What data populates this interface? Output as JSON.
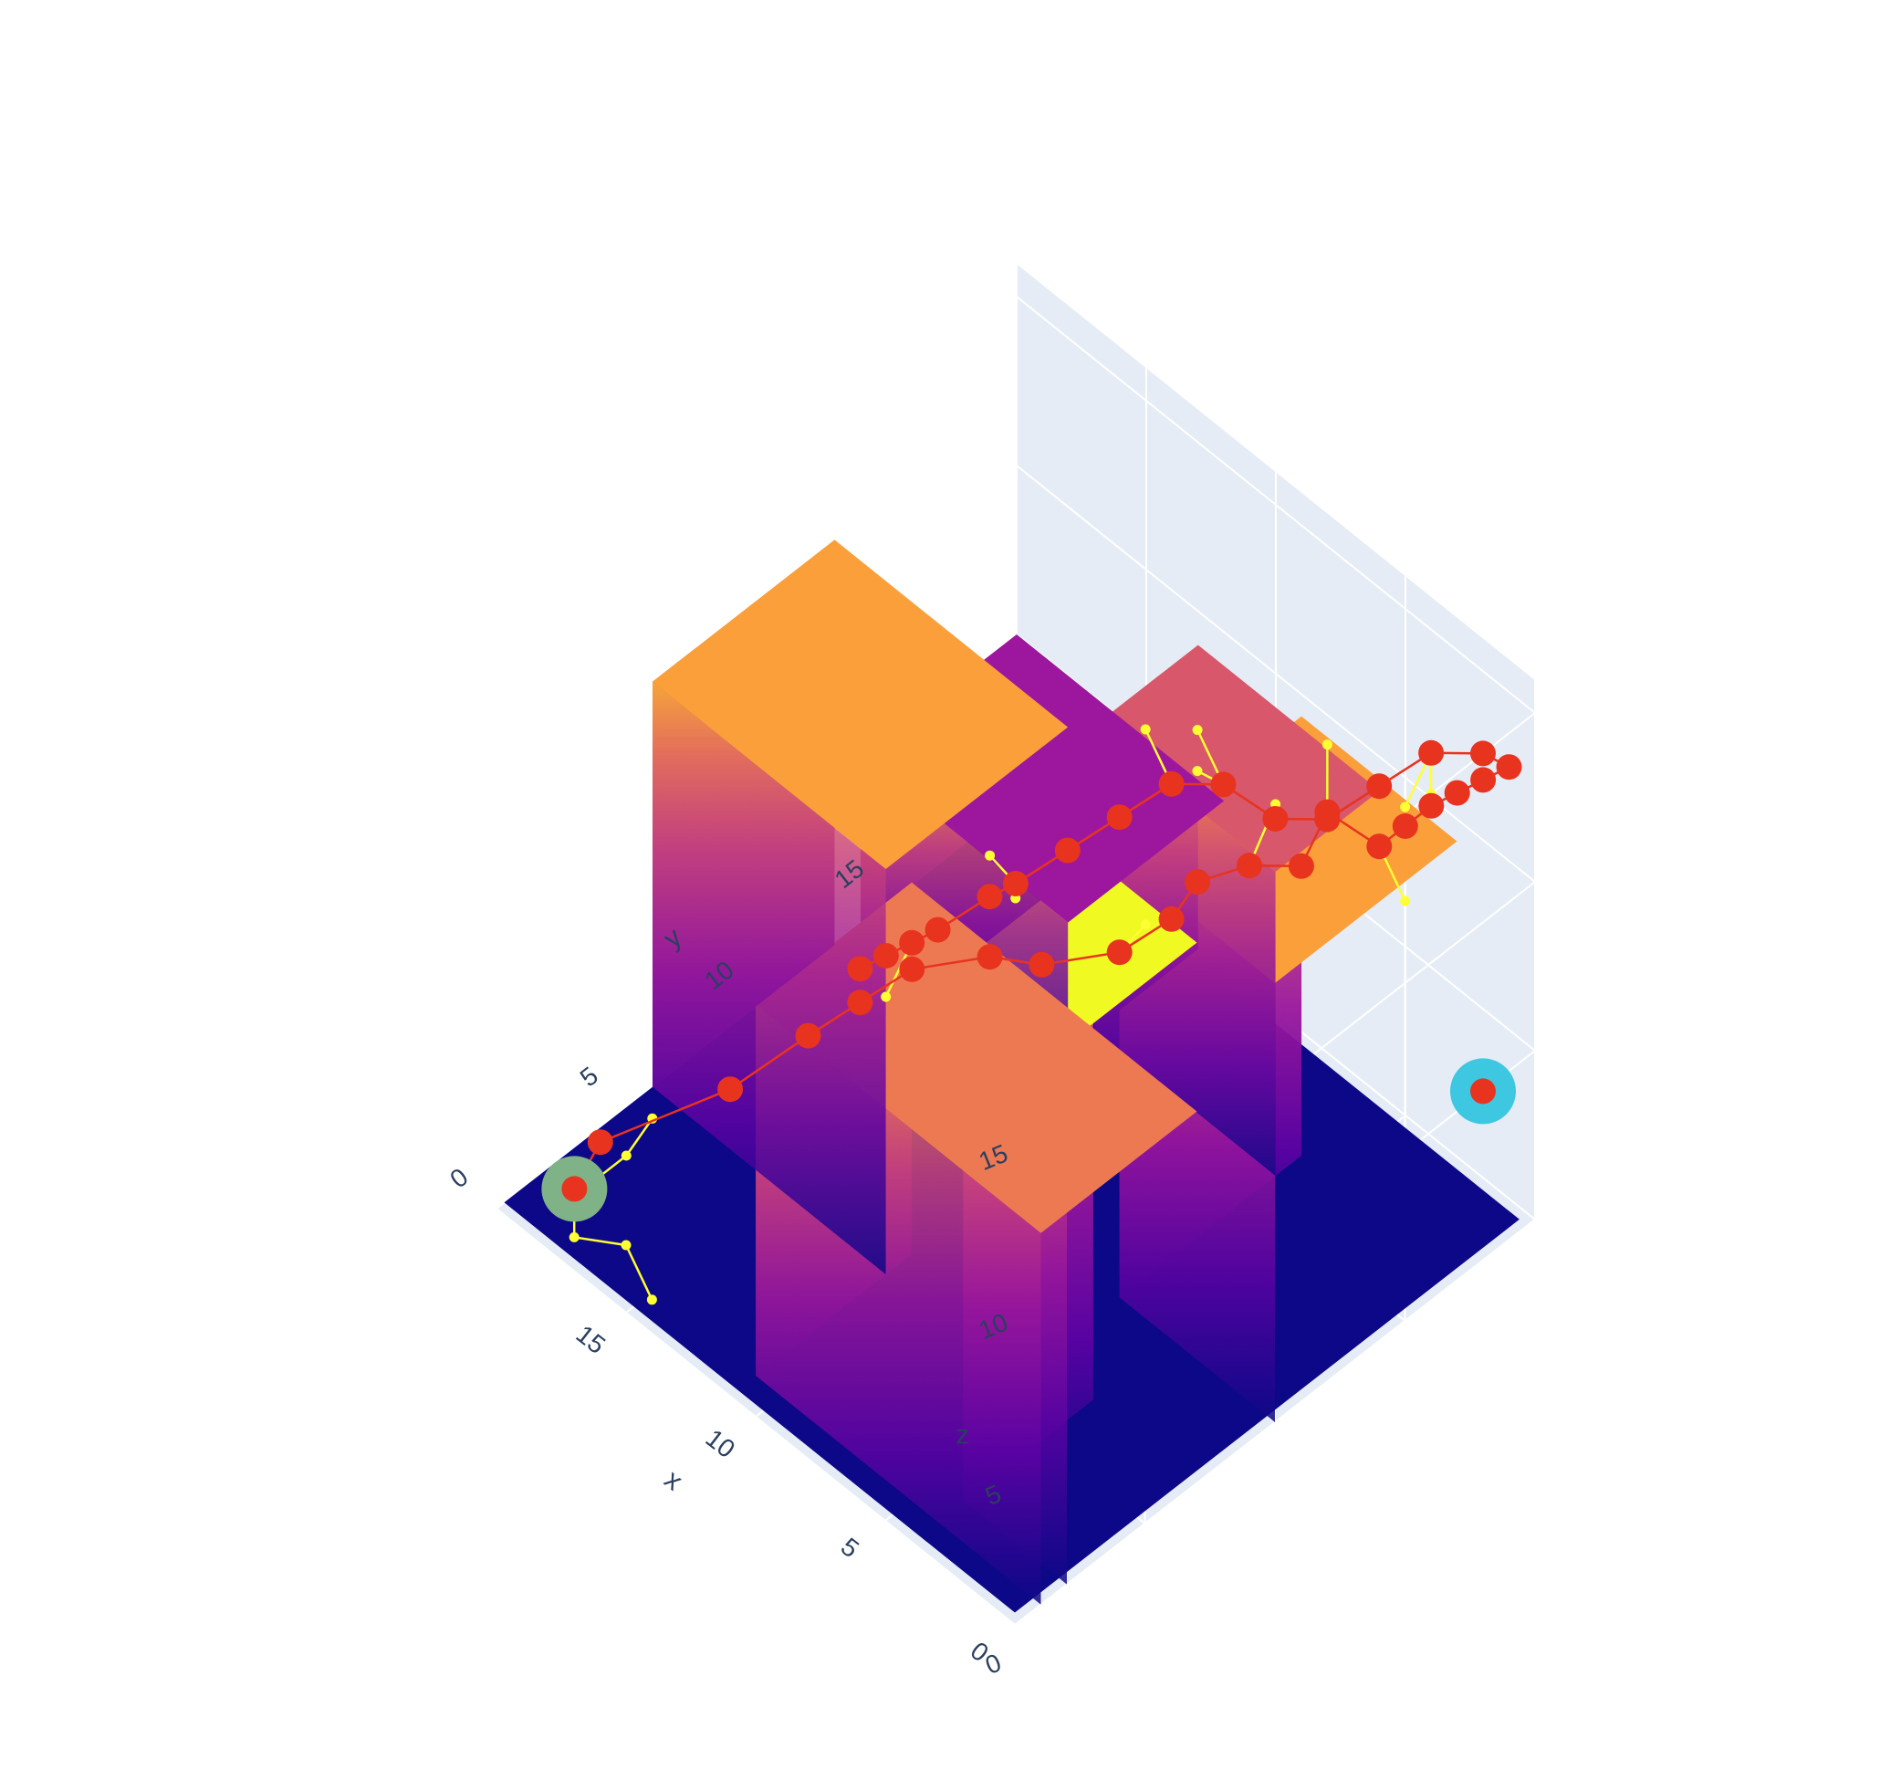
{
  "chart_data": {
    "type": "surface3d",
    "title": "",
    "axes": {
      "x": {
        "label": "x",
        "range": [
          0,
          20
        ],
        "ticks": [
          "0",
          "5",
          "10",
          "15"
        ]
      },
      "y": {
        "label": "y",
        "range": [
          0,
          20
        ],
        "ticks": [
          "0",
          "5",
          "10",
          "15"
        ]
      },
      "z": {
        "label": "z",
        "range": [
          0,
          16
        ],
        "ticks": [
          "0",
          "5",
          "10",
          "15"
        ]
      }
    },
    "grid": true,
    "colorscale": "plasma",
    "colors": {
      "background_panes": "#e5ecf6",
      "gridline": "#ffffff",
      "floor": "#0d0887",
      "path_red": "#e8331f",
      "tree_yellow": "#ffff33",
      "start_marker": "#7fb286",
      "goal_marker": "#3ec7e0",
      "tick_text": "#2a3f5f"
    },
    "blocks": [
      {
        "x": [
          0,
          11
        ],
        "y": [
          1,
          7
        ],
        "z": 11
      },
      {
        "x": [
          0,
          4
        ],
        "y": [
          2,
          7
        ],
        "z": 16
      },
      {
        "x": [
          0,
          6
        ],
        "y": [
          10,
          17
        ],
        "z": 13
      },
      {
        "x": [
          11,
          20
        ],
        "y": [
          6,
          13
        ],
        "z": 12
      },
      {
        "x": [
          12,
          20
        ],
        "y": [
          14,
          20
        ],
        "z": 5
      },
      {
        "x": [
          6,
          13
        ],
        "y": [
          16,
          20
        ],
        "z": 9
      }
    ],
    "series": [
      {
        "kind": "path",
        "points": [
          [
            19,
            2,
            0
          ],
          [
            18,
            2,
            2
          ],
          [
            16,
            5,
            3
          ],
          [
            15,
            7,
            4
          ],
          [
            14,
            8,
            5
          ],
          [
            13,
            9,
            6
          ],
          [
            11,
            10,
            7
          ],
          [
            9,
            10,
            8
          ],
          [
            7,
            11,
            9
          ],
          [
            6,
            12,
            10
          ],
          [
            6,
            13,
            10.5
          ],
          [
            5,
            14,
            11
          ],
          [
            4,
            15,
            11
          ],
          [
            4,
            16,
            12
          ],
          [
            3,
            17,
            11
          ],
          [
            3,
            18,
            11
          ],
          [
            3,
            19,
            11
          ],
          [
            2,
            19,
            12
          ],
          [
            1,
            19,
            13
          ],
          [
            0,
            19,
            14
          ],
          [
            0,
            18,
            15
          ],
          [
            1,
            17,
            15
          ],
          [
            2,
            16,
            14
          ],
          [
            3,
            15,
            13
          ],
          [
            4,
            14,
            13
          ],
          [
            5,
            13,
            14
          ],
          [
            6,
            12,
            14
          ],
          [
            7,
            11,
            13
          ],
          [
            8,
            10,
            12
          ],
          [
            9,
            9,
            11
          ],
          [
            10,
            9,
            10
          ],
          [
            11,
            8,
            9
          ],
          [
            12,
            8,
            8
          ],
          [
            13,
            8,
            7
          ],
          [
            14,
            8,
            6
          ]
        ]
      },
      {
        "kind": "tree",
        "edges": [
          [
            [
              19,
              2,
              0
            ],
            [
              18,
              1,
              1
            ]
          ],
          [
            [
              18,
              1,
              1
            ],
            [
              17,
              0,
              1
            ]
          ],
          [
            [
              17,
              0,
              1
            ],
            [
              15,
              0,
              2
            ]
          ],
          [
            [
              15,
              0,
              2
            ],
            [
              14,
              0,
              1
            ]
          ],
          [
            [
              18,
              1,
              1
            ],
            [
              18,
              3,
              1
            ]
          ],
          [
            [
              18,
              3,
              1
            ],
            [
              18,
              4,
              1.5
            ]
          ],
          [
            [
              9,
              9,
              11
            ],
            [
              8,
              8,
              12
            ]
          ],
          [
            [
              8,
              8,
              12
            ],
            [
              7,
              7,
              13
            ]
          ],
          [
            [
              9,
              9,
              11
            ],
            [
              11,
              10,
              10
            ]
          ],
          [
            [
              12,
              8,
              8
            ],
            [
              12,
              7,
              7
            ]
          ],
          [
            [
              7,
              11,
              9
            ],
            [
              8,
              13,
              8
            ]
          ],
          [
            [
              5,
              14,
              11
            ],
            [
              6,
              16,
              11
            ]
          ],
          [
            [
              3,
              17,
              11
            ],
            [
              2,
              17,
              10
            ]
          ],
          [
            [
              1,
              17,
              15
            ],
            [
              1,
              16,
              14
            ]
          ],
          [
            [
              1,
              17,
              15
            ],
            [
              0,
              16,
              15
            ]
          ],
          [
            [
              5,
              13,
              14
            ],
            [
              5,
              12,
              15
            ]
          ],
          [
            [
              5,
              13,
              14
            ],
            [
              6,
              13,
              15
            ]
          ],
          [
            [
              6,
              12,
              14
            ],
            [
              7,
              12,
              15
            ]
          ],
          [
            [
              3,
              15,
              13
            ],
            [
              4,
              16,
              14
            ]
          ],
          [
            [
              4,
              14,
              13
            ],
            [
              3,
              13,
              14
            ]
          ]
        ]
      }
    ],
    "markers": [
      {
        "label": "start",
        "point": [
          19,
          2,
          0
        ]
      },
      {
        "label": "goal",
        "point": [
          0,
          18,
          5
        ]
      }
    ],
    "legend": "none"
  }
}
